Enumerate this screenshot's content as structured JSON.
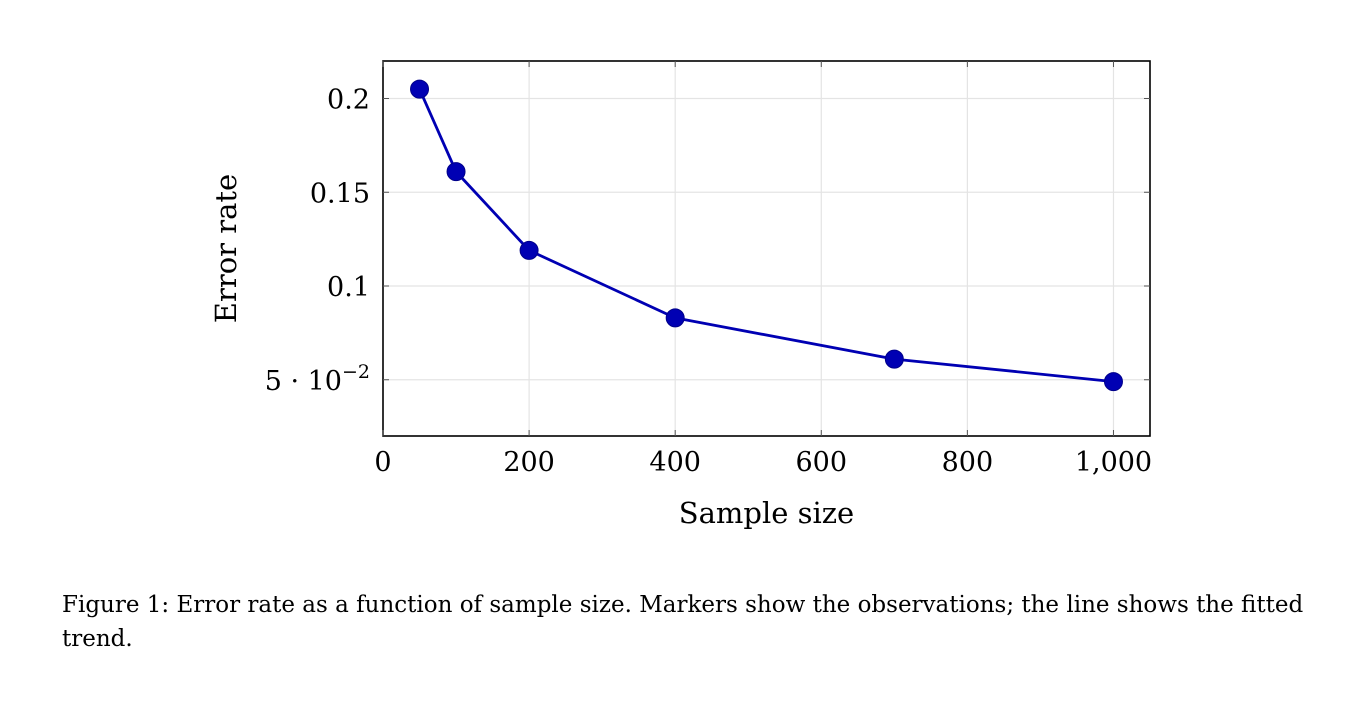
{
  "chart_data": {
    "type": "line",
    "xlabel": "Sample size",
    "ylabel": "Error rate",
    "xlim": [
      0,
      1050
    ],
    "ylim": [
      0.02,
      0.22
    ],
    "x_ticks": [
      0,
      200,
      400,
      600,
      800,
      1000
    ],
    "x_tick_labels": [
      "0",
      "200",
      "400",
      "600",
      "800",
      "1,000"
    ],
    "y_ticks": [
      0.05,
      0.1,
      0.15,
      0.2
    ],
    "y_tick_labels": [
      {
        "text": "5 · 10",
        "sup": "−2"
      },
      {
        "text": "0.1"
      },
      {
        "text": "0.15"
      },
      {
        "text": "0.2"
      }
    ],
    "grid": true,
    "series": [
      {
        "x": [
          50,
          100,
          200,
          400,
          700,
          1000
        ],
        "y": [
          0.205,
          0.161,
          0.119,
          0.083,
          0.061,
          0.049
        ],
        "color": "#0000b3",
        "marker": "circle"
      }
    ]
  },
  "caption": {
    "text": "Figure 1: Error rate as a function of sample size. Markers show the observations; the line shows the fitted trend."
  }
}
